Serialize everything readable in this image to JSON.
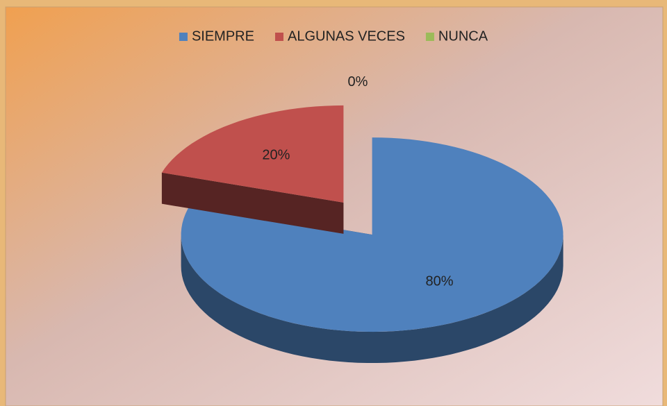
{
  "chart_data": {
    "type": "pie3d",
    "categories": [
      "SIEMPRE",
      "ALGUNAS VECES",
      "NUNCA"
    ],
    "values": [
      80,
      20,
      0
    ],
    "value_labels": [
      "80%",
      "20%",
      "0%"
    ],
    "colors": [
      "#4f81bd",
      "#c0504d",
      "#9bbb59"
    ],
    "legend": "top"
  }
}
